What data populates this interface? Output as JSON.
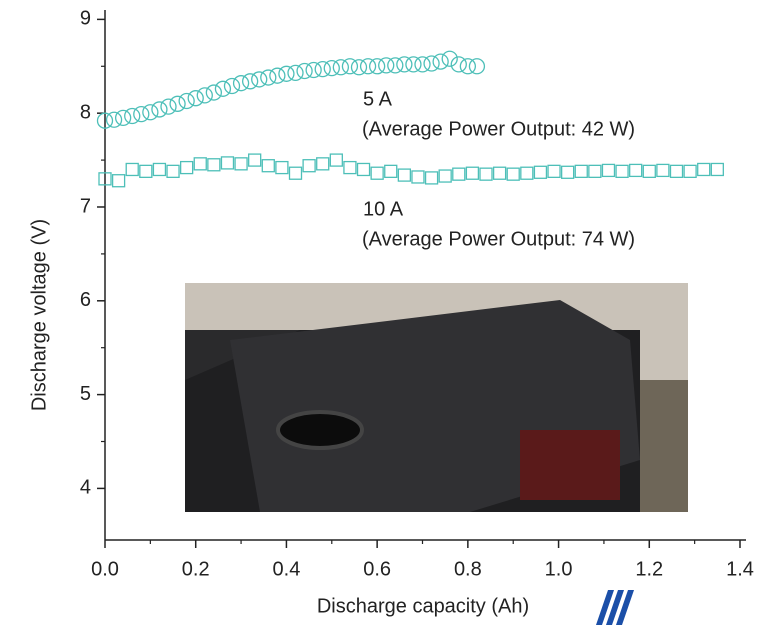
{
  "chart_data": {
    "type": "scatter",
    "x_label": "Discharge capacity (Ah)",
    "y_label": "Discharge voltage (V)",
    "xlim": [
      0,
      1.4
    ],
    "ylim": [
      3.45,
      9.1
    ],
    "xticks": [
      {
        "value": 0,
        "label": "0.0"
      },
      {
        "value": 0.2,
        "label": "0.2"
      },
      {
        "value": 0.4,
        "label": "0.4"
      },
      {
        "value": 0.6,
        "label": "0.6"
      },
      {
        "value": 0.8,
        "label": "0.8"
      },
      {
        "value": 1.0,
        "label": "1.0"
      },
      {
        "value": 1.2,
        "label": "1.2"
      },
      {
        "value": 1.4,
        "label": "1.4"
      }
    ],
    "yticks": [
      4,
      5,
      6,
      7,
      8,
      9
    ],
    "annotations": [
      "5 A",
      "(Average Power Output: 42 W)",
      "10 A",
      "(Average Power Output: 74 W)"
    ],
    "series": [
      {
        "marker": "circle",
        "color": "#4dbfb8",
        "x": [
          0,
          0.02,
          0.04,
          0.06,
          0.08,
          0.1,
          0.12,
          0.14,
          0.16,
          0.18,
          0.2,
          0.22,
          0.24,
          0.26,
          0.28,
          0.3,
          0.32,
          0.34,
          0.36,
          0.38,
          0.4,
          0.42,
          0.44,
          0.46,
          0.48,
          0.5,
          0.52,
          0.54,
          0.56,
          0.58,
          0.6,
          0.62,
          0.64,
          0.66,
          0.68,
          0.7,
          0.72,
          0.74,
          0.76,
          0.78,
          0.8,
          0.82
        ],
        "values": [
          7.92,
          7.93,
          7.95,
          7.97,
          7.99,
          8.01,
          8.04,
          8.07,
          8.1,
          8.13,
          8.16,
          8.19,
          8.22,
          8.26,
          8.29,
          8.32,
          8.34,
          8.36,
          8.38,
          8.4,
          8.42,
          8.43,
          8.45,
          8.46,
          8.47,
          8.48,
          8.49,
          8.5,
          8.49,
          8.5,
          8.5,
          8.51,
          8.51,
          8.52,
          8.52,
          8.52,
          8.53,
          8.55,
          8.58,
          8.52,
          8.5,
          8.5
        ]
      },
      {
        "marker": "square",
        "color": "#4dbfb8",
        "x": [
          0,
          0.03,
          0.06,
          0.09,
          0.12,
          0.15,
          0.18,
          0.21,
          0.24,
          0.27,
          0.3,
          0.33,
          0.36,
          0.39,
          0.42,
          0.45,
          0.48,
          0.51,
          0.54,
          0.57,
          0.6,
          0.63,
          0.66,
          0.69,
          0.72,
          0.75,
          0.78,
          0.81,
          0.84,
          0.87,
          0.9,
          0.93,
          0.96,
          0.99,
          1.02,
          1.05,
          1.08,
          1.11,
          1.14,
          1.17,
          1.2,
          1.23,
          1.26,
          1.29,
          1.32,
          1.35
        ],
        "values": [
          7.3,
          7.28,
          7.4,
          7.38,
          7.4,
          7.38,
          7.42,
          7.46,
          7.45,
          7.47,
          7.46,
          7.5,
          7.44,
          7.42,
          7.36,
          7.44,
          7.46,
          7.5,
          7.42,
          7.4,
          7.36,
          7.38,
          7.34,
          7.32,
          7.31,
          7.33,
          7.35,
          7.36,
          7.35,
          7.36,
          7.35,
          7.36,
          7.37,
          7.38,
          7.37,
          7.38,
          7.38,
          7.39,
          7.38,
          7.39,
          7.38,
          7.39,
          7.38,
          7.38,
          7.4,
          7.4
        ]
      }
    ]
  }
}
